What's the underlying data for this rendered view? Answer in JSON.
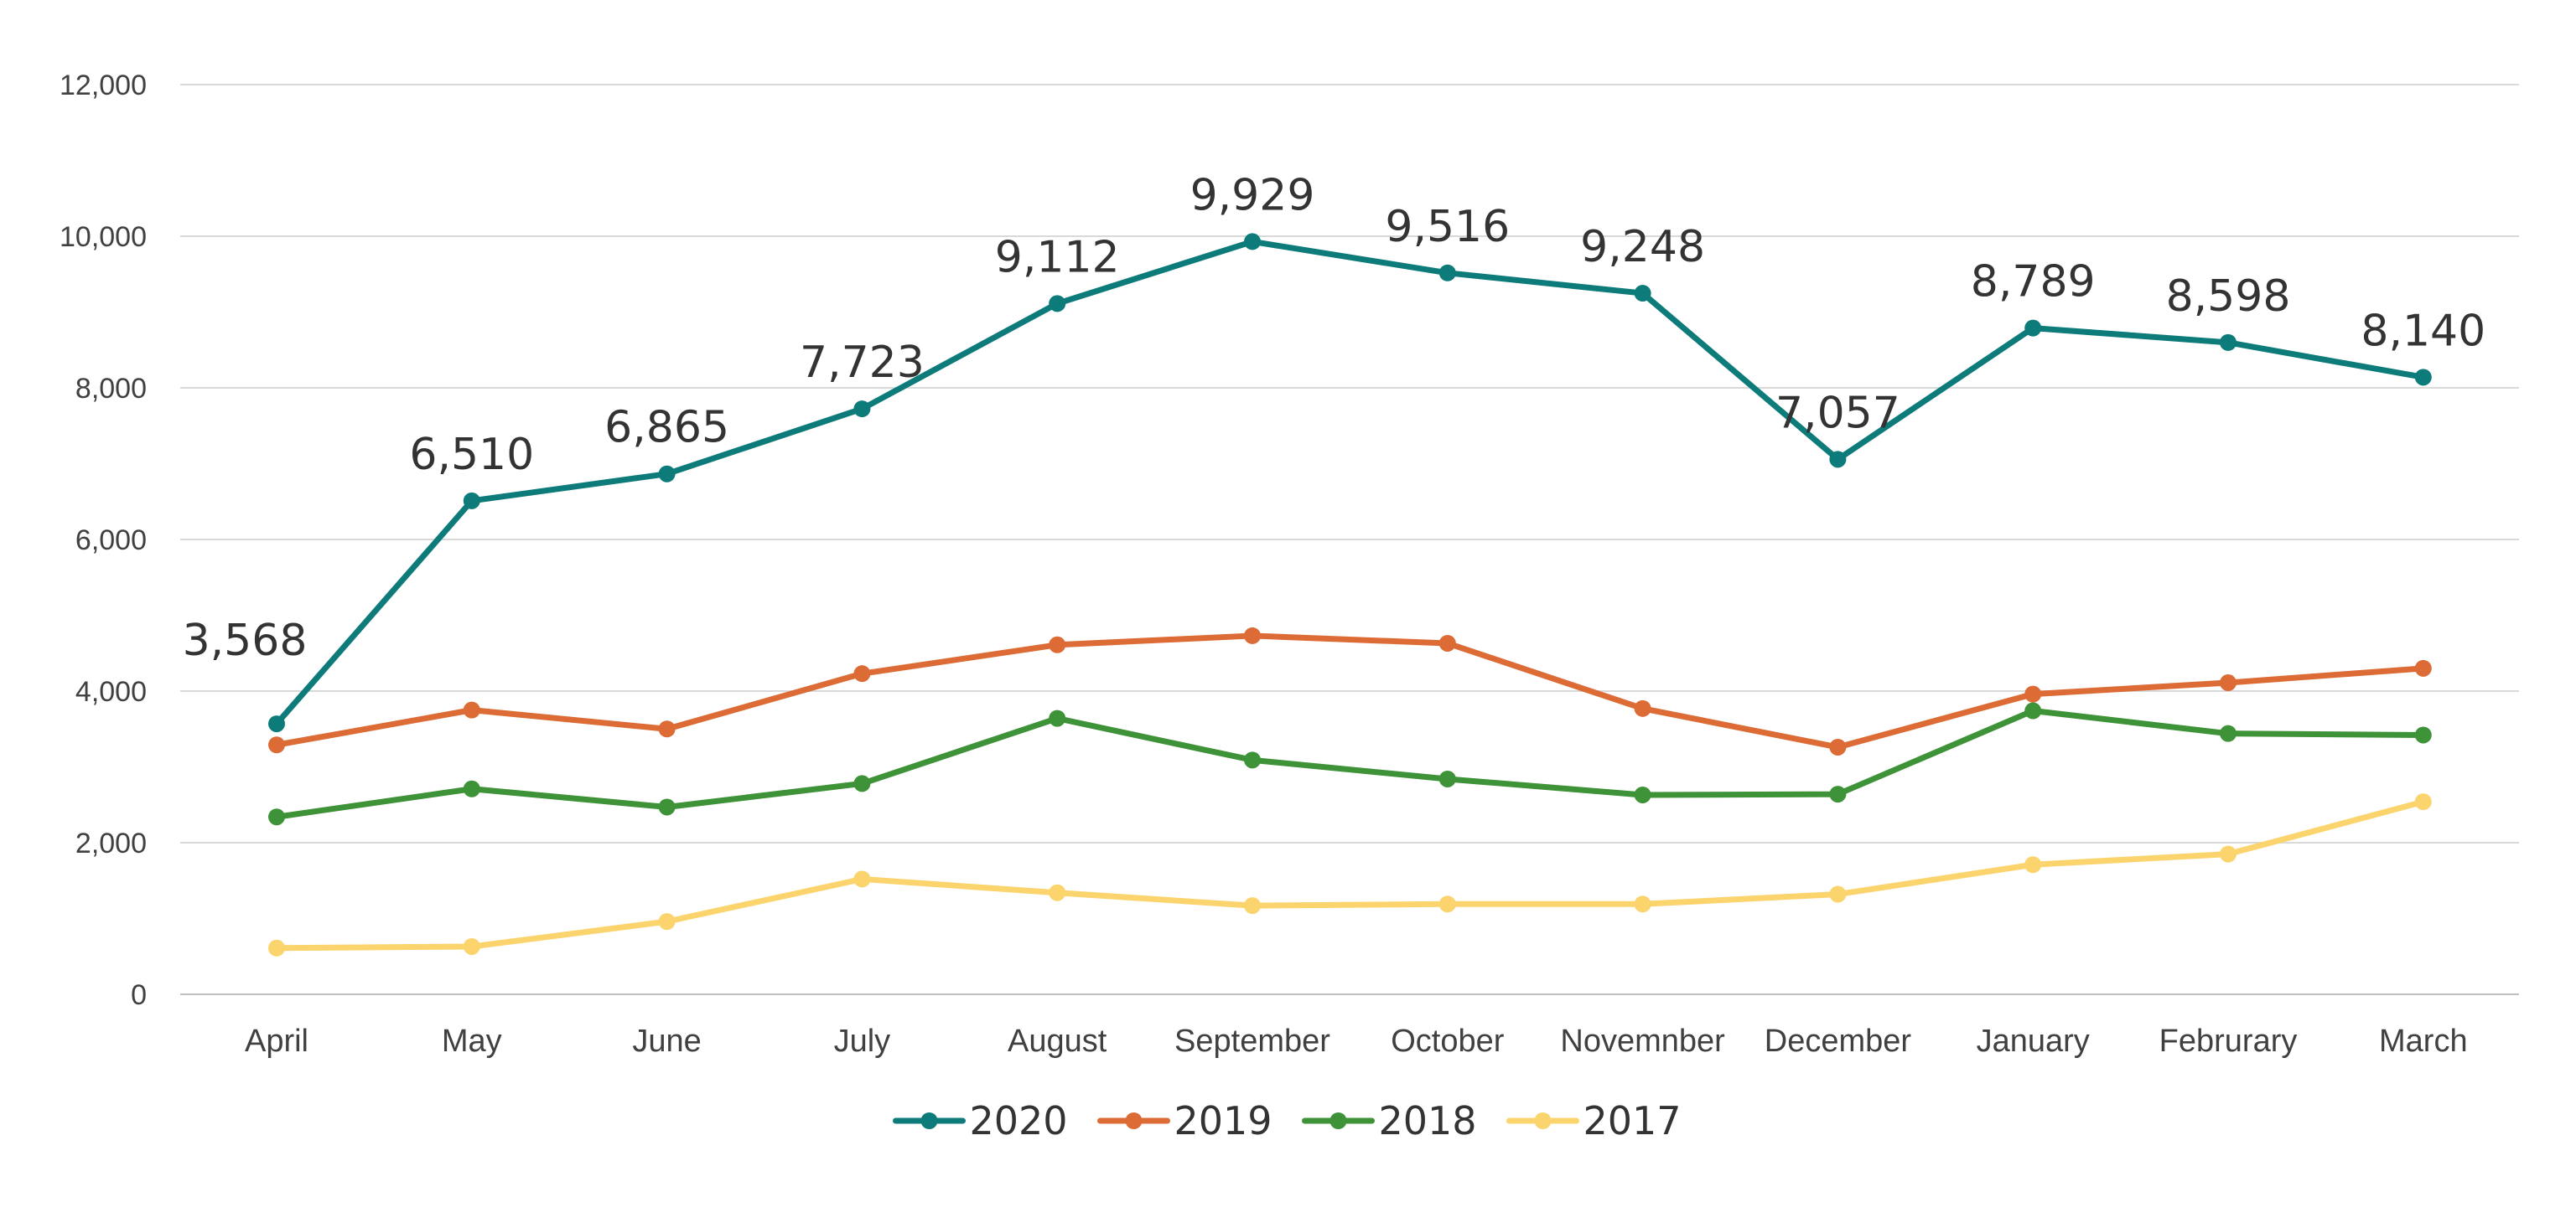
{
  "chart_data": {
    "type": "line",
    "title": "",
    "xlabel": "",
    "ylabel": "",
    "ylim": [
      0,
      12000
    ],
    "yticks": [
      0,
      2000,
      4000,
      6000,
      8000,
      10000,
      12000
    ],
    "ytick_labels": [
      "0",
      "2,000",
      "4,000",
      "6,000",
      "8,000",
      "10,000",
      "12,000"
    ],
    "grid": true,
    "legend_position": "bottom",
    "categories": [
      "April",
      "May",
      "June",
      "July",
      "August",
      "September",
      "October",
      "Novemnber",
      "December",
      "January",
      "Februrary",
      "March"
    ],
    "series": [
      {
        "name": "2020",
        "color": "#0e7b7b",
        "values": [
          3568,
          6510,
          6865,
          7723,
          9112,
          9929,
          9516,
          9248,
          7057,
          8789,
          8598,
          8140
        ],
        "data_labels": [
          "3,568",
          "6,510",
          "6,865",
          "7,723",
          "9,112",
          "9,929",
          "9,516",
          "9,248",
          "7,057",
          "8,789",
          "8,598",
          "8,140"
        ]
      },
      {
        "name": "2019",
        "color": "#dc6b35",
        "values": [
          3290,
          3750,
          3500,
          4230,
          4610,
          4730,
          4630,
          3770,
          3260,
          3960,
          4110,
          4300
        ],
        "data_labels": []
      },
      {
        "name": "2018",
        "color": "#3e9237",
        "values": [
          2340,
          2710,
          2470,
          2780,
          3640,
          3090,
          2840,
          2630,
          2640,
          3740,
          3440,
          3420
        ],
        "data_labels": []
      },
      {
        "name": "2017",
        "color": "#fbd46d",
        "values": [
          610,
          630,
          960,
          1520,
          1340,
          1170,
          1190,
          1190,
          1320,
          1710,
          1850,
          2540
        ],
        "data_labels": []
      }
    ]
  }
}
